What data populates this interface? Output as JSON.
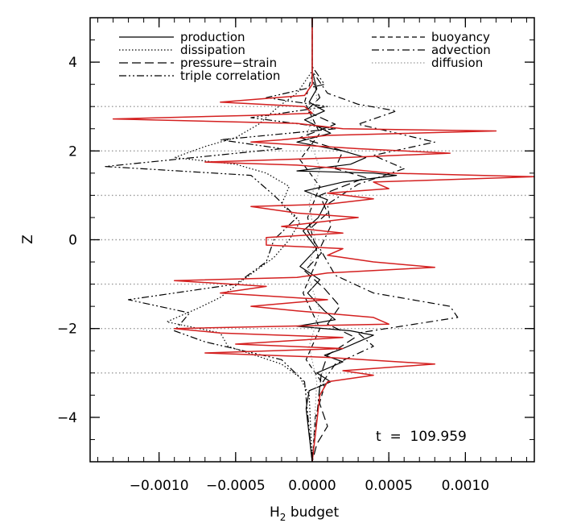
{
  "chart_data": {
    "type": "line",
    "orientation": "profile",
    "xlabel": "H",
    "xlabel_sub": "2",
    "xlabel_rest": " budget",
    "ylabel": "Z",
    "xlim": [
      -0.00145,
      0.00145
    ],
    "ylim": [
      -5,
      5
    ],
    "x_ticks": [
      -0.001,
      -0.0005,
      0.0,
      0.0005,
      0.001
    ],
    "x_tick_labels": [
      "−0.0010",
      "−0.0005",
      "0.0000",
      "0.0005",
      "0.0010"
    ],
    "y_ticks": [
      -4,
      -2,
      0,
      2,
      4
    ],
    "y_tick_labels": [
      "−4",
      "−2",
      "0",
      "2",
      "4"
    ],
    "reference_lines_z": [
      -3,
      -2,
      -1,
      0,
      1,
      2,
      3
    ],
    "annotation": {
      "label": "t  =  109.959"
    },
    "legend_left": [
      "production",
      "dissipation",
      "pressure−strain",
      "triple correlation"
    ],
    "legend_right": [
      "buoyancy",
      "advection",
      "diffusion"
    ],
    "colors": {
      "red": "#d42020",
      "black": "#000000",
      "gray": "#999999"
    },
    "series": [
      {
        "name": "production",
        "style": "solid",
        "color": "#000000",
        "points": [
          [
            0,
            5
          ],
          [
            0,
            3.8
          ],
          [
            3e-05,
            3.4
          ],
          [
            -2e-05,
            3.1
          ],
          [
            8e-05,
            2.9
          ],
          [
            -5e-05,
            2.7
          ],
          [
            0.00012,
            2.4
          ],
          [
            -0.0001,
            2.2
          ],
          [
            0.0002,
            2.0
          ],
          [
            0.00035,
            1.85
          ],
          [
            0.00025,
            1.7
          ],
          [
            -0.0001,
            1.55
          ],
          [
            0.0004,
            1.5
          ],
          [
            0.00055,
            1.45
          ],
          [
            0.0002,
            1.3
          ],
          [
            -5e-05,
            1.1
          ],
          [
            0.0001,
            0.9
          ],
          [
            4e-05,
            0.5
          ],
          [
            -6e-05,
            0.2
          ],
          [
            3e-05,
            -0.2
          ],
          [
            -8e-05,
            -0.6
          ],
          [
            5e-05,
            -0.9
          ],
          [
            -3e-05,
            -1.2
          ],
          [
            8e-05,
            -1.6
          ],
          [
            0.00015,
            -1.8
          ],
          [
            -0.0001,
            -1.95
          ],
          [
            0.00025,
            -2.05
          ],
          [
            0.0004,
            -2.15
          ],
          [
            0.0003,
            -2.3
          ],
          [
            0.0002,
            -2.45
          ],
          [
            8e-05,
            -2.6
          ],
          [
            0.0002,
            -2.75
          ],
          [
            3e-05,
            -3.0
          ],
          [
            0.00012,
            -3.2
          ],
          [
            -2e-05,
            -3.4
          ],
          [
            -4e-05,
            -3.8
          ],
          [
            0,
            -5
          ]
        ]
      },
      {
        "name": "dissipation",
        "style": "dotted",
        "color": "#000000",
        "points": [
          [
            0,
            5
          ],
          [
            0,
            3.8
          ],
          [
            -0.0001,
            3.3
          ],
          [
            -0.00022,
            3.0
          ],
          [
            -0.00035,
            2.6
          ],
          [
            -0.0005,
            2.3
          ],
          [
            -0.0007,
            2.1
          ],
          [
            -0.0009,
            1.85
          ],
          [
            -0.0005,
            1.7
          ],
          [
            -0.0003,
            1.5
          ],
          [
            -0.00015,
            1.2
          ],
          [
            -0.0002,
            0.8
          ],
          [
            -8e-05,
            0.4
          ],
          [
            -0.00015,
            0.0
          ],
          [
            -0.00025,
            -0.4
          ],
          [
            -0.00045,
            -0.9
          ],
          [
            -0.0006,
            -1.3
          ],
          [
            -0.00075,
            -1.55
          ],
          [
            -0.00095,
            -1.85
          ],
          [
            -0.0006,
            -2.1
          ],
          [
            -0.00055,
            -2.4
          ],
          [
            -0.0002,
            -2.8
          ],
          [
            -8e-05,
            -3.1
          ],
          [
            -2e-05,
            -3.5
          ],
          [
            0,
            -5
          ]
        ]
      },
      {
        "name": "pressure-strain",
        "style": "longdash",
        "color": "#000000",
        "points": [
          [
            0,
            5
          ],
          [
            0,
            3.6
          ],
          [
            5e-05,
            3.2
          ],
          [
            -4e-05,
            2.9
          ],
          [
            0.00015,
            2.6
          ],
          [
            -8e-05,
            2.3
          ],
          [
            0.0002,
            2.0
          ],
          [
            0.00015,
            1.6
          ],
          [
            0.00035,
            1.4
          ],
          [
            5e-05,
            1.0
          ],
          [
            0.0001,
            0.6
          ],
          [
            -3e-05,
            0.2
          ],
          [
            6e-05,
            -0.3
          ],
          [
            -5e-05,
            -0.7
          ],
          [
            8e-05,
            -1.1
          ],
          [
            0.00018,
            -1.5
          ],
          [
            0.0001,
            -1.9
          ],
          [
            0.00028,
            -2.2
          ],
          [
            0.0001,
            -2.6
          ],
          [
            6e-05,
            -3.0
          ],
          [
            4e-05,
            -3.6
          ],
          [
            0.0001,
            -4.2
          ],
          [
            3e-05,
            -4.6
          ],
          [
            0,
            -5
          ]
        ]
      },
      {
        "name": "triple correlation",
        "style": "dashdotdot",
        "color": "#000000",
        "points": [
          [
            0,
            5
          ],
          [
            0,
            3.9
          ],
          [
            8e-05,
            3.5
          ],
          [
            -0.0003,
            3.2
          ],
          [
            0.0001,
            3.0
          ],
          [
            -0.0004,
            2.75
          ],
          [
            0.00015,
            2.5
          ],
          [
            -0.0006,
            2.25
          ],
          [
            -0.0002,
            2.05
          ],
          [
            -0.00135,
            1.65
          ],
          [
            -0.0004,
            1.45
          ],
          [
            -0.00025,
            1.0
          ],
          [
            -0.0001,
            0.5
          ],
          [
            -0.00025,
            0.0
          ],
          [
            -0.0003,
            -0.5
          ],
          [
            -0.0005,
            -1.0
          ],
          [
            -0.0012,
            -1.35
          ],
          [
            -0.0008,
            -1.65
          ],
          [
            -0.0009,
            -2.05
          ],
          [
            -0.0007,
            -2.3
          ],
          [
            -0.0002,
            -2.7
          ],
          [
            -5e-05,
            -3.2
          ],
          [
            0,
            -5
          ]
        ]
      },
      {
        "name": "buoyancy",
        "style": "shortdash",
        "color": "#000000",
        "points": [
          [
            0,
            5
          ],
          [
            0,
            3.7
          ],
          [
            -5e-05,
            3.1
          ],
          [
            5e-05,
            2.4
          ],
          [
            -8e-05,
            1.8
          ],
          [
            5e-05,
            1.2
          ],
          [
            -3e-05,
            0.5
          ],
          [
            4e-05,
            -0.4
          ],
          [
            -6e-05,
            -1.2
          ],
          [
            5e-05,
            -2.0
          ],
          [
            -4e-05,
            -2.7
          ],
          [
            8e-05,
            -3.3
          ],
          [
            2e-05,
            -4.0
          ],
          [
            0,
            -5
          ]
        ]
      },
      {
        "name": "advection",
        "style": "dashdot",
        "color": "#000000",
        "points": [
          [
            0,
            5
          ],
          [
            0,
            3.8
          ],
          [
            0.0001,
            3.3
          ],
          [
            0.0003,
            3.05
          ],
          [
            0.00055,
            2.9
          ],
          [
            0.0003,
            2.6
          ],
          [
            0.0008,
            2.2
          ],
          [
            0.0004,
            1.9
          ],
          [
            0.0006,
            1.6
          ],
          [
            0.0003,
            1.25
          ],
          [
            0.0001,
            0.8
          ],
          [
            0.00012,
            0.3
          ],
          [
            5e-05,
            -0.2
          ],
          [
            0.00015,
            -0.8
          ],
          [
            0.0004,
            -1.2
          ],
          [
            0.0009,
            -1.5
          ],
          [
            0.00095,
            -1.75
          ],
          [
            0.0003,
            -2.1
          ],
          [
            0.0004,
            -2.4
          ],
          [
            0.00015,
            -2.8
          ],
          [
            5e-05,
            -3.3
          ],
          [
            0,
            -5
          ]
        ]
      },
      {
        "name": "diffusion",
        "style": "dotted",
        "color": "#999999",
        "points": [
          [
            0,
            5
          ],
          [
            0,
            3.8
          ],
          [
            3e-05,
            3.2
          ],
          [
            -3e-05,
            2.4
          ],
          [
            5e-05,
            1.6
          ],
          [
            -2e-05,
            0.8
          ],
          [
            2e-05,
            0.0
          ],
          [
            -3e-05,
            -0.8
          ],
          [
            5e-05,
            -1.6
          ],
          [
            -2e-05,
            -2.4
          ],
          [
            3e-05,
            -3.2
          ],
          [
            0,
            -5
          ]
        ]
      },
      {
        "name": "",
        "style": "solid",
        "color": "#d42020",
        "points": [
          [
            0,
            5
          ],
          [
            0,
            3.5
          ],
          [
            -5e-05,
            3.25
          ],
          [
            -0.0006,
            3.1
          ],
          [
            -5e-05,
            3.0
          ],
          [
            0,
            2.85
          ],
          [
            -0.0004,
            2.8
          ],
          [
            -0.0013,
            2.72
          ],
          [
            -0.0001,
            2.62
          ],
          [
            0.0002,
            2.5
          ],
          [
            0.0012,
            2.45
          ],
          [
            0.0001,
            2.35
          ],
          [
            -0.0002,
            2.25
          ],
          [
            -0.0004,
            2.2
          ],
          [
            0.0003,
            2.05
          ],
          [
            0.0009,
            1.95
          ],
          [
            0.0002,
            1.85
          ],
          [
            -0.0007,
            1.75
          ],
          [
            -0.0001,
            1.68
          ],
          [
            0.0002,
            1.6
          ],
          [
            0.0005,
            1.5
          ],
          [
            0.00145,
            1.42
          ],
          [
            0.0004,
            1.3
          ],
          [
            0.0005,
            1.15
          ],
          [
            0.0001,
            1.05
          ],
          [
            0.0004,
            0.92
          ],
          [
            0.0001,
            0.8
          ],
          [
            -0.0004,
            0.75
          ],
          [
            -0.0001,
            0.6
          ],
          [
            0.0003,
            0.5
          ],
          [
            -0.0002,
            0.3
          ],
          [
            0.0002,
            0.15
          ],
          [
            -0.0003,
            0.05
          ],
          [
            -0.0003,
            -0.12
          ],
          [
            0.0002,
            -0.2
          ],
          [
            0.0001,
            -0.35
          ],
          [
            0.0004,
            -0.5
          ],
          [
            0.0008,
            -0.62
          ],
          [
            0.0001,
            -0.75
          ],
          [
            -0.0001,
            -0.85
          ],
          [
            -0.0009,
            -0.92
          ],
          [
            -0.0003,
            -1.05
          ],
          [
            -0.0006,
            -1.2
          ],
          [
            0.0001,
            -1.35
          ],
          [
            -0.0004,
            -1.5
          ],
          [
            -0.0001,
            -1.6
          ],
          [
            0.0004,
            -1.75
          ],
          [
            0.0005,
            -1.9
          ],
          [
            -0.0009,
            -2.0
          ],
          [
            -0.0006,
            -2.1
          ],
          [
            0.0002,
            -2.2
          ],
          [
            -0.0005,
            -2.35
          ],
          [
            0.0002,
            -2.45
          ],
          [
            -0.0007,
            -2.55
          ],
          [
            0.0001,
            -2.65
          ],
          [
            0.0008,
            -2.8
          ],
          [
            0.0002,
            -2.95
          ],
          [
            0.0004,
            -3.05
          ],
          [
            0.0001,
            -3.2
          ],
          [
            5e-05,
            -3.5
          ],
          [
            0,
            -5
          ]
        ]
      }
    ]
  }
}
